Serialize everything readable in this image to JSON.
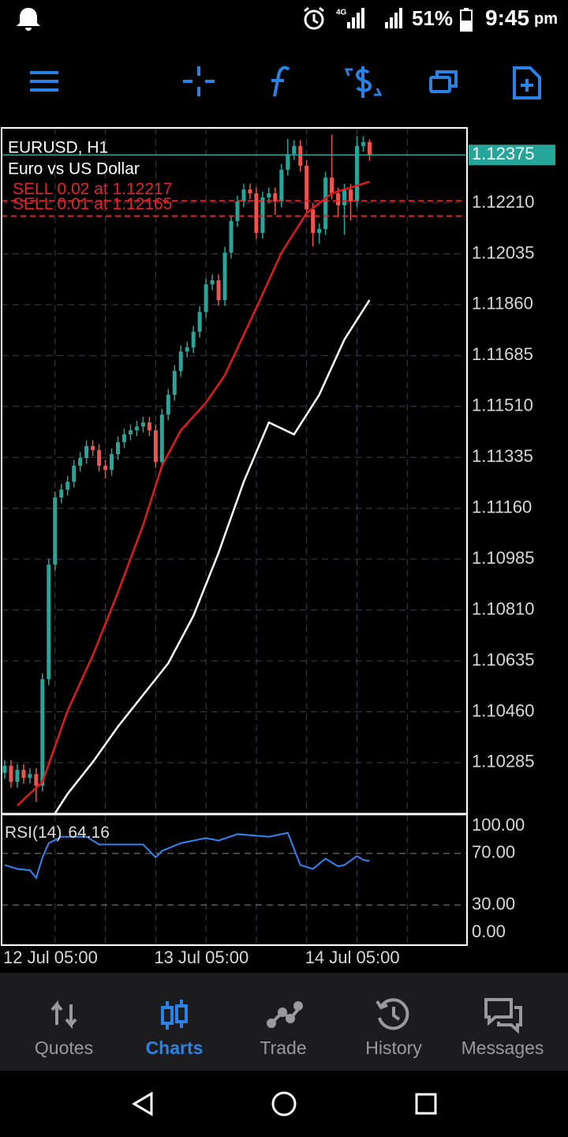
{
  "status_bar": {
    "network": "4G",
    "battery": "51%",
    "time": "9:45",
    "time_suffix": "pm"
  },
  "chart_data": [
    {
      "type": "candlestick",
      "title": "EURUSD, H1",
      "subtitle": "Euro vs US Dollar",
      "colors": {
        "up": "#26a69a",
        "down": "#ef5350"
      },
      "open": [
        1.1025,
        1.10274,
        1.10219,
        1.1026,
        1.10233,
        1.10246,
        1.10206,
        1.10572,
        1.10966,
        1.11197,
        1.11224,
        1.11251,
        1.11306,
        1.11333,
        1.11374,
        1.1136,
        1.11306,
        1.11292,
        1.11346,
        1.11387,
        1.11414,
        1.11428,
        1.11441,
        1.11455,
        1.11428,
        1.11319,
        1.11482,
        1.1155,
        1.11632,
        1.11699,
        1.11713,
        1.11767,
        1.11835,
        1.1193,
        1.11944,
        1.11876,
        1.12039,
        1.12148,
        1.12215,
        1.12256,
        1.12243,
        1.12107,
        1.12229,
        1.12243,
        1.12215,
        1.12324,
        1.12378,
        1.12406,
        1.12338,
        1.12188,
        1.12107,
        1.1212,
        1.12297,
        1.12243,
        1.12202,
        1.12256,
        1.12215,
        1.12406,
        1.12419
      ],
      "high": [
        1.10294,
        1.10294,
        1.1028,
        1.1028,
        1.10266,
        1.10266,
        1.10592,
        1.10986,
        1.11217,
        1.11244,
        1.11271,
        1.11326,
        1.11353,
        1.11394,
        1.11394,
        1.1138,
        1.11326,
        1.11366,
        1.11407,
        1.11434,
        1.11448,
        1.11461,
        1.11475,
        1.11475,
        1.11448,
        1.11502,
        1.1157,
        1.11652,
        1.11719,
        1.11733,
        1.11787,
        1.11855,
        1.1195,
        1.11964,
        1.11964,
        1.12059,
        1.12168,
        1.12235,
        1.12276,
        1.12276,
        1.12263,
        1.12249,
        1.12263,
        1.12263,
        1.12344,
        1.1243,
        1.12426,
        1.12426,
        1.12358,
        1.12208,
        1.1214,
        1.12317,
        1.12445,
        1.12263,
        1.12276,
        1.12276,
        1.1244,
        1.12439,
        1.12429
      ],
      "low": [
        1.1023,
        1.10199,
        1.10199,
        1.10213,
        1.10213,
        1.1015,
        1.10186,
        1.10552,
        1.10946,
        1.11177,
        1.11204,
        1.11231,
        1.11286,
        1.11313,
        1.1134,
        1.11286,
        1.11262,
        1.11272,
        1.11326,
        1.11367,
        1.11394,
        1.11408,
        1.11421,
        1.11408,
        1.11299,
        1.11299,
        1.11462,
        1.1153,
        1.11612,
        1.11679,
        1.11693,
        1.11747,
        1.11815,
        1.1191,
        1.11856,
        1.11856,
        1.12019,
        1.12128,
        1.12195,
        1.12223,
        1.12087,
        1.12087,
        1.12209,
        1.1217,
        1.12195,
        1.12304,
        1.12358,
        1.12318,
        1.12168,
        1.1206,
        1.1207,
        1.121,
        1.12223,
        1.1216,
        1.121,
        1.1215,
        1.12195,
        1.12386,
        1.12355
      ],
      "close": [
        1.10274,
        1.10219,
        1.1026,
        1.10233,
        1.10246,
        1.10206,
        1.10572,
        1.10966,
        1.11197,
        1.11224,
        1.11251,
        1.11306,
        1.11333,
        1.11374,
        1.1136,
        1.11306,
        1.11292,
        1.11346,
        1.11387,
        1.11414,
        1.11428,
        1.11441,
        1.11455,
        1.11428,
        1.11319,
        1.11482,
        1.1155,
        1.11632,
        1.11699,
        1.11713,
        1.11767,
        1.11835,
        1.1193,
        1.11944,
        1.11876,
        1.12039,
        1.12148,
        1.12215,
        1.12256,
        1.12243,
        1.12107,
        1.12229,
        1.12243,
        1.12215,
        1.12324,
        1.12378,
        1.12406,
        1.12338,
        1.12188,
        1.12107,
        1.1212,
        1.12297,
        1.12243,
        1.12202,
        1.12256,
        1.12215,
        1.12406,
        1.12419,
        1.12375
      ],
      "moving_averages": [
        {
          "color": "#e01b1b",
          "x": [
            2,
            6,
            10,
            14,
            18,
            22,
            25,
            28,
            32,
            35,
            40,
            44,
            48,
            52,
            58
          ],
          "values": [
            1.10138,
            1.10219,
            1.10464,
            1.10654,
            1.10871,
            1.11102,
            1.11306,
            1.11428,
            1.11523,
            1.11618,
            1.11849,
            1.12039,
            1.12175,
            1.12243,
            1.12283
          ]
        },
        {
          "color": "#ffffff",
          "x": [
            8,
            10,
            14,
            18,
            22,
            26,
            30,
            34,
            38,
            42,
            46,
            50,
            54,
            58
          ],
          "values": [
            1.10111,
            1.10178,
            1.10287,
            1.10409,
            1.10518,
            1.10627,
            1.1079,
            1.11007,
            1.11251,
            1.11455,
            1.11414,
            1.1155,
            1.1174,
            1.11876
          ]
        }
      ],
      "current_price": 1.12375,
      "current_price_color": "#26a69a",
      "orders": [
        {
          "label": "SELL 0.02 at 1.12217",
          "price": 1.12217
        },
        {
          "label": "SELL 0.01 at 1.12165",
          "price": 1.12165
        }
      ],
      "order_color": "#e0242c",
      "xlim": [
        -0.5,
        73.5
      ],
      "xticks": [
        {
          "value": 0,
          "label": "12 Jul 05:00"
        },
        {
          "value": 24,
          "label": "13 Jul 05:00"
        },
        {
          "value": 48,
          "label": "14 Jul 05:00"
        }
      ],
      "x_grid": [
        8,
        16,
        24,
        32,
        40,
        48,
        56,
        64
      ],
      "ylim": [
        1.10111,
        1.12468
      ],
      "yticks": [
        {
          "value": 1.1221,
          "label": "1.12210"
        },
        1.12035,
        {
          "value": 1.1186,
          "label": "1.11860"
        },
        1.11685,
        {
          "value": 1.1151,
          "label": "1.11510"
        },
        1.11335,
        {
          "value": 1.1116,
          "label": "1.11160"
        },
        1.10985,
        {
          "value": 1.1081,
          "label": "1.10810"
        },
        1.10635,
        {
          "value": 1.1046,
          "label": "1.10460"
        },
        1.10285
      ],
      "grid": true
    },
    {
      "type": "line",
      "title": "RSI(14)",
      "current": 64.16,
      "color": "#2f86f5",
      "xlim": [
        -0.5,
        73.5
      ],
      "x": [
        0,
        2,
        4,
        5,
        6,
        7,
        9,
        13,
        15,
        18,
        22,
        24,
        25,
        28,
        32,
        34,
        37,
        42,
        45,
        47,
        49,
        50,
        51,
        53,
        54,
        56,
        57,
        58
      ],
      "values": [
        61,
        58,
        57,
        51,
        67,
        78,
        83,
        83,
        77,
        77,
        77,
        67,
        72,
        78,
        82,
        80,
        85,
        83,
        86,
        61,
        58,
        62,
        66,
        60,
        61,
        68,
        65,
        64.16
      ],
      "ylim": [
        0,
        100
      ],
      "yticks": [
        {
          "value": 100,
          "label": "100.00"
        },
        {
          "value": 70,
          "label": "70.00"
        },
        {
          "value": 30,
          "label": "30.00"
        },
        {
          "value": 0,
          "label": "0.00"
        }
      ],
      "grid": true
    }
  ],
  "nav": {
    "items": [
      "Quotes",
      "Charts",
      "Trade",
      "History",
      "Messages"
    ],
    "active": 1
  }
}
